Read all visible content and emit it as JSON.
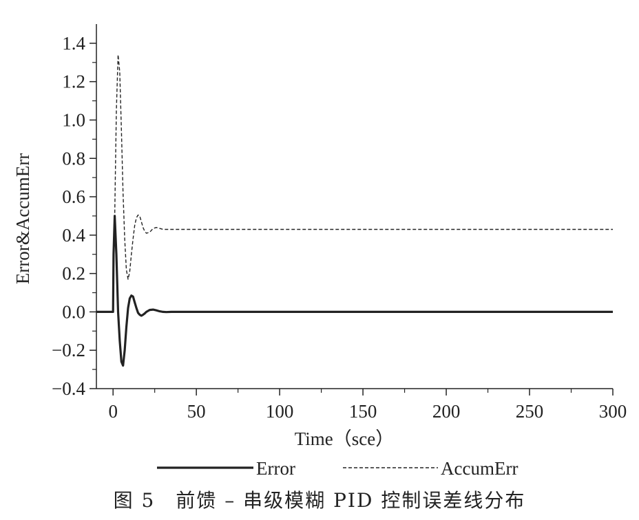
{
  "chart_data": {
    "type": "line",
    "xlabel": "Time（sce）",
    "ylabel": "Error&AccumErr",
    "xlim": [
      -10,
      300
    ],
    "ylim": [
      -0.4,
      1.5
    ],
    "xticks": [
      0,
      50,
      100,
      150,
      200,
      250,
      300
    ],
    "xtick_labels": [
      "0",
      "50",
      "100",
      "150",
      "200",
      "250",
      "300"
    ],
    "yticks": [
      -0.4,
      -0.2,
      0.0,
      0.2,
      0.4,
      0.6,
      0.8,
      1.0,
      1.2,
      1.4
    ],
    "ytick_labels": [
      "−0.4",
      "−0.2",
      "0.0",
      "0.2",
      "0.4",
      "0.6",
      "0.8",
      "1.0",
      "1.2",
      "1.4"
    ],
    "grid": false,
    "legend_position": "bottom",
    "series": [
      {
        "name": "Error",
        "style": "solid-thick",
        "color": "#222222",
        "x": [
          -10,
          0,
          0.3,
          1,
          2,
          3,
          4,
          5,
          6,
          7,
          8,
          9,
          10,
          11,
          12,
          13,
          14,
          15,
          16,
          17,
          18,
          19,
          20,
          22,
          24,
          26,
          28,
          30,
          32,
          35,
          40,
          50,
          300
        ],
        "y": [
          0,
          0,
          0.3,
          0.5,
          0.3,
          0.0,
          -0.15,
          -0.26,
          -0.28,
          -0.2,
          -0.08,
          0.02,
          0.07,
          0.085,
          0.08,
          0.05,
          0.02,
          -0.005,
          -0.015,
          -0.02,
          -0.015,
          -0.008,
          0.0,
          0.01,
          0.012,
          0.008,
          0.003,
          0.0,
          -0.001,
          0.0,
          0.0,
          0.0,
          0.0
        ]
      },
      {
        "name": "AccumErr",
        "style": "dashed",
        "color": "#222222",
        "x": [
          -10,
          0,
          0.3,
          1,
          2,
          3,
          4,
          5,
          6,
          7,
          8,
          9,
          10,
          11,
          12,
          13,
          14,
          15,
          16,
          17,
          18,
          19,
          20,
          22,
          24,
          26,
          28,
          30,
          35,
          40,
          50,
          300
        ],
        "y": [
          0,
          0,
          0.2,
          0.5,
          1.05,
          1.34,
          1.25,
          0.95,
          0.62,
          0.38,
          0.22,
          0.17,
          0.21,
          0.3,
          0.38,
          0.45,
          0.49,
          0.505,
          0.5,
          0.47,
          0.44,
          0.42,
          0.41,
          0.415,
          0.435,
          0.44,
          0.435,
          0.43,
          0.43,
          0.43,
          0.43,
          0.43
        ]
      }
    ]
  },
  "caption": "图 5　前馈 – 串级模糊 PID 控制误差线分布"
}
